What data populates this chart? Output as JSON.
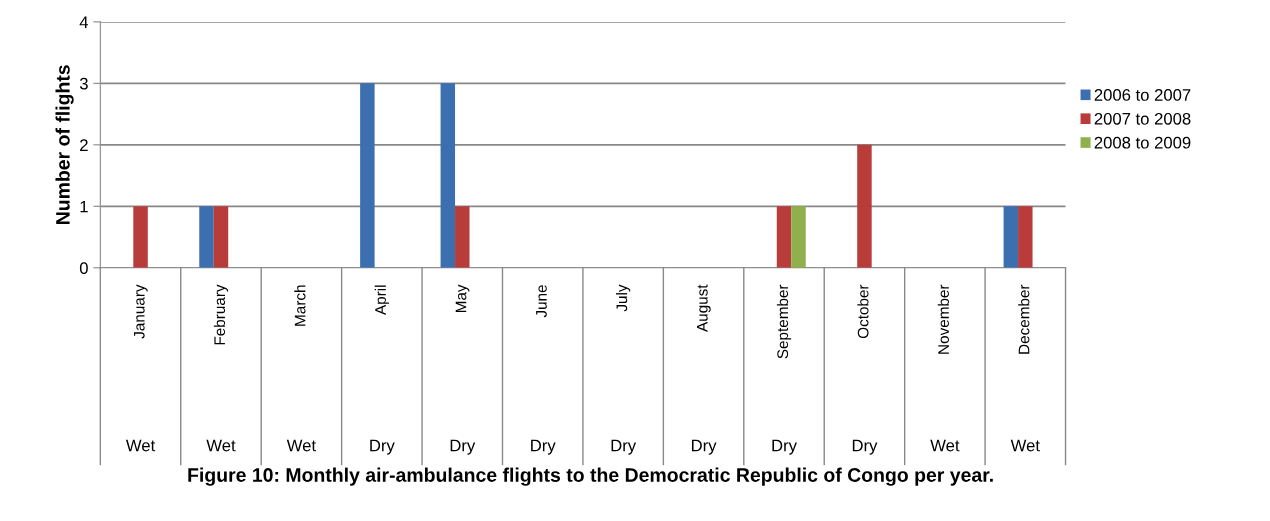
{
  "chart_data": {
    "type": "bar",
    "title": "Figure 10: Monthly air-ambulance flights to the Democratic Republic of Congo per year.",
    "ylabel": "Number of flights",
    "categories": [
      "January",
      "February",
      "March",
      "April",
      "May",
      "June",
      "July",
      "August",
      "September",
      "October",
      "November",
      "December"
    ],
    "annotations": [
      "Wet",
      "Wet",
      "Wet",
      "Dry",
      "Dry",
      "Dry",
      "Dry",
      "Dry",
      "Dry",
      "Dry",
      "Wet",
      "Wet"
    ],
    "series": [
      {
        "name": "2006 to 2007",
        "color": "#3c6fb0",
        "values": [
          0,
          1,
          0,
          3,
          3,
          0,
          0,
          0,
          0,
          0,
          0,
          1
        ]
      },
      {
        "name": "2007 to 2008",
        "color": "#b83c3a",
        "values": [
          1,
          1,
          0,
          0,
          1,
          0,
          0,
          0,
          1,
          2,
          0,
          1
        ]
      },
      {
        "name": "2008 to 2009",
        "color": "#8fb04a",
        "values": [
          0,
          0,
          0,
          0,
          0,
          0,
          0,
          0,
          1,
          0,
          0,
          0
        ]
      }
    ],
    "ylim": [
      0,
      4
    ],
    "yticks": [
      0,
      1,
      2,
      3,
      4
    ],
    "grid": "y",
    "legend": "right"
  }
}
